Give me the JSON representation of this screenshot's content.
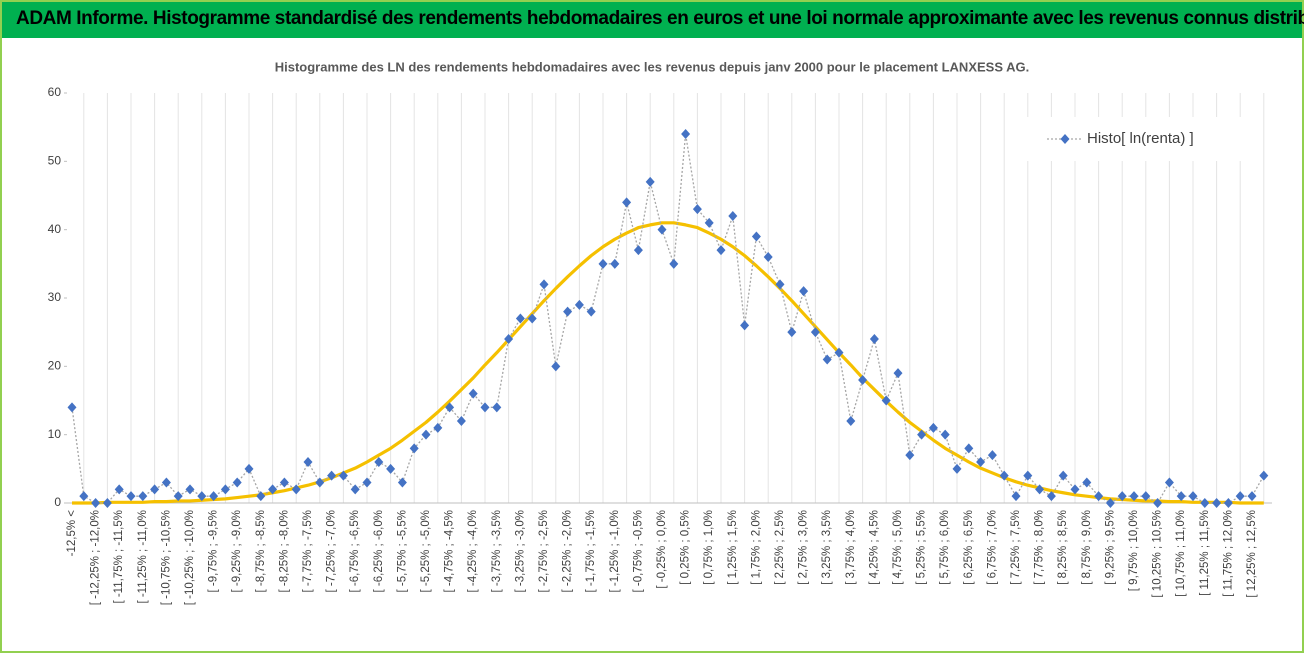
{
  "header": {
    "title": "ADAM Informe. Histogramme standardisé des rendements hebdomadaires en euros et une loi normale approximante avec les revenus connus distribués"
  },
  "chart_data": {
    "type": "line",
    "title": "Histogramme  des LN des rendements hebdomadaires avec les revenus depuis janv 2000 pour le placement LANXESS AG.",
    "categories": [
      "-12,5% <",
      null,
      "[ -12,25% ; -12,0%",
      null,
      "[ -11,75% ; -11,5%",
      null,
      "[ -11,25% ; -11,0%",
      null,
      "[ -10,75% ; -10,5%",
      null,
      "[ -10,25% ; -10,0%",
      null,
      "[ -9,75% ; -9,5%",
      null,
      "[ -9,25% ; -9,0%",
      null,
      "[ -8,75% ; -8,5%",
      null,
      "[ -8,25% ; -8,0%",
      null,
      "[ -7,75% ; -7,5%",
      null,
      "[ -7,25% ; -7,0%",
      null,
      "[ -6,75% ; -6,5%",
      null,
      "[ -6,25% ; -6,0%",
      null,
      "[ -5,75% ; -5,5%",
      null,
      "[ -5,25% ; -5,0%",
      null,
      "[ -4,75% ; -4,5%",
      null,
      "[ -4,25% ; -4,0%",
      null,
      "[ -3,75% ; -3,5%",
      null,
      "[ -3,25% ; -3,0%",
      null,
      "[ -2,75% ; -2,5%",
      null,
      "[ -2,25% ; -2,0%",
      null,
      "[ -1,75% ; -1,5%",
      null,
      "[ -1,25% ; -1,0%",
      null,
      "[ -0,75% ; -0,5%",
      null,
      "[ -0,25% ; 0,0%",
      null,
      "[ 0,25% ; 0,5%",
      null,
      "[ 0,75% ; 1,0%",
      null,
      "[ 1,25% ; 1,5%",
      null,
      "[ 1,75% ; 2,0%",
      null,
      "[ 2,25% ; 2,5%",
      null,
      "[ 2,75% ; 3,0%",
      null,
      "[ 3,25% ; 3,5%",
      null,
      "[ 3,75% ; 4,0%",
      null,
      "[ 4,25% ; 4,5%",
      null,
      "[ 4,75% ; 5,0%",
      null,
      "[ 5,25% ; 5,5%",
      null,
      "[ 5,75% ; 6,0%",
      null,
      "[ 6,25% ; 6,5%",
      null,
      "[ 6,75% ; 7,0%",
      null,
      "[ 7,25% ; 7,5%",
      null,
      "[ 7,75% ; 8,0%",
      null,
      "[ 8,25% ; 8,5%",
      null,
      "[ 8,75% ; 9,0%",
      null,
      "[ 9,25% ; 9,5%",
      null,
      "[ 9,75% ; 10,0%",
      null,
      "[ 10,25% ; 10,5%",
      null,
      "[ 10,75% ; 11,0%",
      null,
      "[ 11,25% ; 11,5%",
      null,
      "[ 11,75% ; 12,0%",
      null,
      "[ 12,25% ; 12,5%",
      null
    ],
    "series": [
      {
        "name": "Histo[ ln(renta) ]",
        "color": "#4472c4",
        "values": [
          14,
          1,
          0,
          0,
          2,
          1,
          1,
          2,
          3,
          1,
          2,
          1,
          1,
          2,
          3,
          5,
          1,
          2,
          3,
          2,
          6,
          3,
          4,
          4,
          2,
          3,
          6,
          5,
          3,
          8,
          10,
          11,
          14,
          12,
          16,
          14,
          14,
          24,
          27,
          27,
          32,
          20,
          28,
          29,
          28,
          35,
          35,
          44,
          37,
          47,
          40,
          35,
          54,
          43,
          41,
          37,
          42,
          26,
          39,
          36,
          32,
          25,
          31,
          25,
          21,
          22,
          12,
          18,
          24,
          15,
          19,
          7,
          10,
          11,
          10,
          5,
          8,
          6,
          7,
          4,
          1,
          4,
          2,
          1,
          4,
          2,
          3,
          1,
          0,
          1,
          1,
          1,
          0,
          3,
          1,
          1,
          0,
          0,
          0,
          1,
          1,
          4
        ]
      },
      {
        "color": "#f5c000",
        "values": [
          0.0,
          0.0,
          0.0,
          0.1,
          0.1,
          0.1,
          0.1,
          0.2,
          0.2,
          0.3,
          0.3,
          0.4,
          0.5,
          0.6,
          0.8,
          1.0,
          1.2,
          1.5,
          1.8,
          2.2,
          2.6,
          3.1,
          3.7,
          4.4,
          5.1,
          6.0,
          7.0,
          8.0,
          9.2,
          10.5,
          11.8,
          13.3,
          14.9,
          16.6,
          18.3,
          20.2,
          22.0,
          23.9,
          25.8,
          27.7,
          29.6,
          31.4,
          33.1,
          34.7,
          36.2,
          37.5,
          38.6,
          39.5,
          40.3,
          40.7,
          41.0,
          41.0,
          40.7,
          40.3,
          39.5,
          38.6,
          37.5,
          36.2,
          34.7,
          33.1,
          31.4,
          29.6,
          27.7,
          25.8,
          23.9,
          22.0,
          20.2,
          18.3,
          16.6,
          14.9,
          13.3,
          11.8,
          10.5,
          9.2,
          8.0,
          7.0,
          6.0,
          5.1,
          4.4,
          3.7,
          3.1,
          2.6,
          2.2,
          1.8,
          1.5,
          1.2,
          1.0,
          0.8,
          0.6,
          0.5,
          0.4,
          0.3,
          0.3,
          0.2,
          0.2,
          0.1,
          0.1,
          0.1,
          0.1,
          0.0,
          0.0,
          0.0
        ]
      }
    ],
    "ylim": [
      0,
      60
    ],
    "yticks": [
      0,
      10,
      20,
      30,
      40,
      50,
      60
    ],
    "legend": "top-right"
  }
}
